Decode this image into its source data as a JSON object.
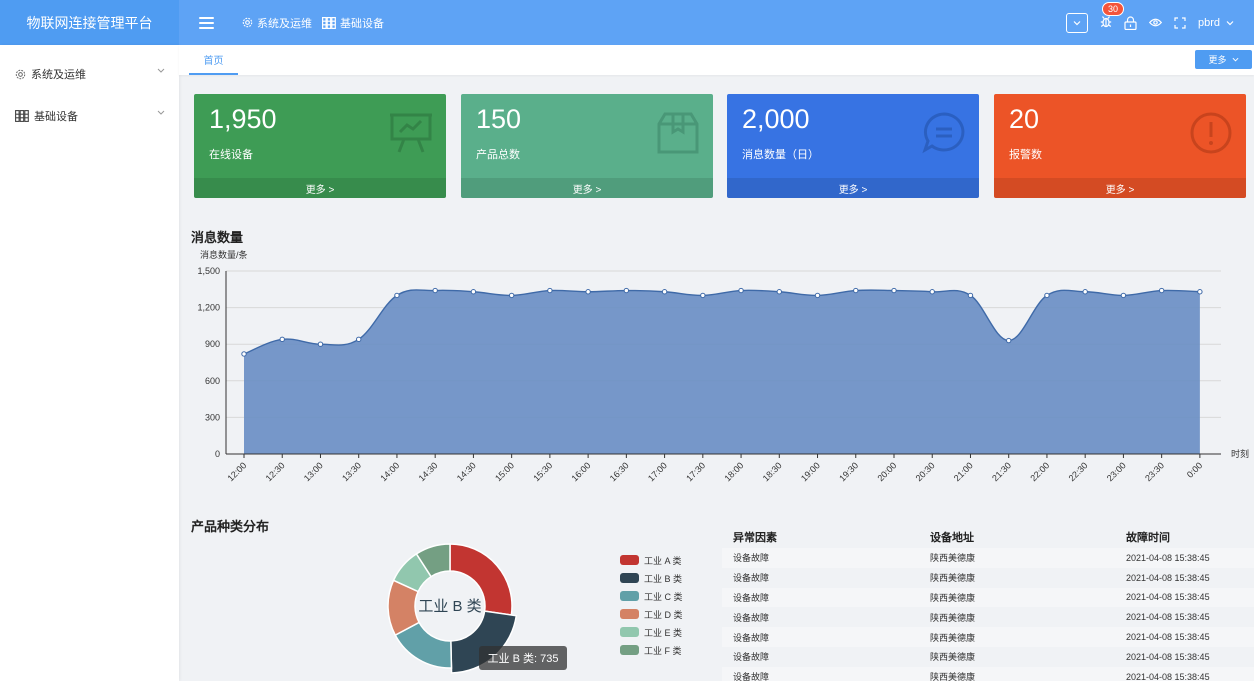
{
  "app": {
    "title": "物联网连接管理平台"
  },
  "topbar": {
    "nav": [
      {
        "label": "系统及运维",
        "icon": "gear-icon"
      },
      {
        "label": "基础设备",
        "icon": "grid-icon"
      }
    ],
    "notification_count": "30",
    "username": "pbrd"
  },
  "sidebar": {
    "items": [
      {
        "label": "系统及运维",
        "icon": "gear-icon"
      },
      {
        "label": "基础设备",
        "icon": "grid-icon"
      }
    ]
  },
  "tabs": {
    "home": "首页",
    "more": "更多"
  },
  "cards": [
    {
      "value": "1,950",
      "label": "在线设备",
      "more": "更多 >",
      "color": "#3e9c55",
      "icon": "presentation-chart-icon"
    },
    {
      "value": "150",
      "label": "产品总数",
      "more": "更多 >",
      "color": "#5aaf8b",
      "icon": "box-icon"
    },
    {
      "value": "2,000",
      "label": "消息数量（日）",
      "more": "更多 >",
      "color": "#3773e3",
      "icon": "chat-bubble-icon"
    },
    {
      "value": "20",
      "label": "报警数",
      "more": "更多 >",
      "color": "#ec5427",
      "icon": "alert-circle-icon"
    }
  ],
  "message_section": {
    "title": "消息数量"
  },
  "chart_data": [
    {
      "type": "area",
      "title": "消息数量",
      "ylabel": "消息数量/条",
      "xlabel": "时刻",
      "ylim": [
        0,
        1500
      ],
      "yticks": [
        "0",
        "300",
        "600",
        "900",
        "1,200",
        "1,500"
      ],
      "categories": [
        "12:00",
        "12:30",
        "13:00",
        "13:30",
        "14:00",
        "14:30",
        "14:30",
        "15:00",
        "15:30",
        "16:00",
        "16:30",
        "17:00",
        "17:30",
        "18:00",
        "18:30",
        "19:00",
        "19:30",
        "20:00",
        "20:30",
        "21:00",
        "21:30",
        "22:00",
        "22:30",
        "23:00",
        "23:30",
        "0:00"
      ],
      "values": [
        820,
        940,
        900,
        940,
        1300,
        1340,
        1330,
        1300,
        1340,
        1330,
        1340,
        1330,
        1300,
        1340,
        1330,
        1300,
        1340,
        1340,
        1330,
        1300,
        930,
        1300,
        1330,
        1300,
        1340,
        1330
      ],
      "grid": true,
      "color": "#6b8fc4"
    },
    {
      "type": "pie",
      "title": "产品种类分布",
      "center_label": "工业 B 类",
      "categories": [
        "工业 A 类",
        "工业 B 类",
        "工业 C 类",
        "工业 D 类",
        "工业 E 类",
        "工业 F 类"
      ],
      "values": [
        900,
        735,
        580,
        480,
        300,
        300
      ],
      "colors": [
        "#c23531",
        "#2f4554",
        "#61a0a8",
        "#d48265",
        "#91c7ae",
        "#749f83"
      ],
      "tooltip": "工业 B 类: 735",
      "legend": "right"
    }
  ],
  "pie_section": {
    "title": "产品种类分布"
  },
  "fault_table": {
    "headers": [
      "异常因素",
      "设备地址",
      "故障时间"
    ],
    "rows": [
      [
        "设备故障",
        "陕西美德康",
        "2021-04-08 15:38:45"
      ],
      [
        "设备故障",
        "陕西美德康",
        "2021-04-08 15:38:45"
      ],
      [
        "设备故障",
        "陕西美德康",
        "2021-04-08 15:38:45"
      ],
      [
        "设备故障",
        "陕西美德康",
        "2021-04-08 15:38:45"
      ],
      [
        "设备故障",
        "陕西美德康",
        "2021-04-08 15:38:45"
      ],
      [
        "设备故障",
        "陕西美德康",
        "2021-04-08 15:38:45"
      ],
      [
        "设备故障",
        "陕西美德康",
        "2021-04-08 15:38:45"
      ]
    ]
  }
}
